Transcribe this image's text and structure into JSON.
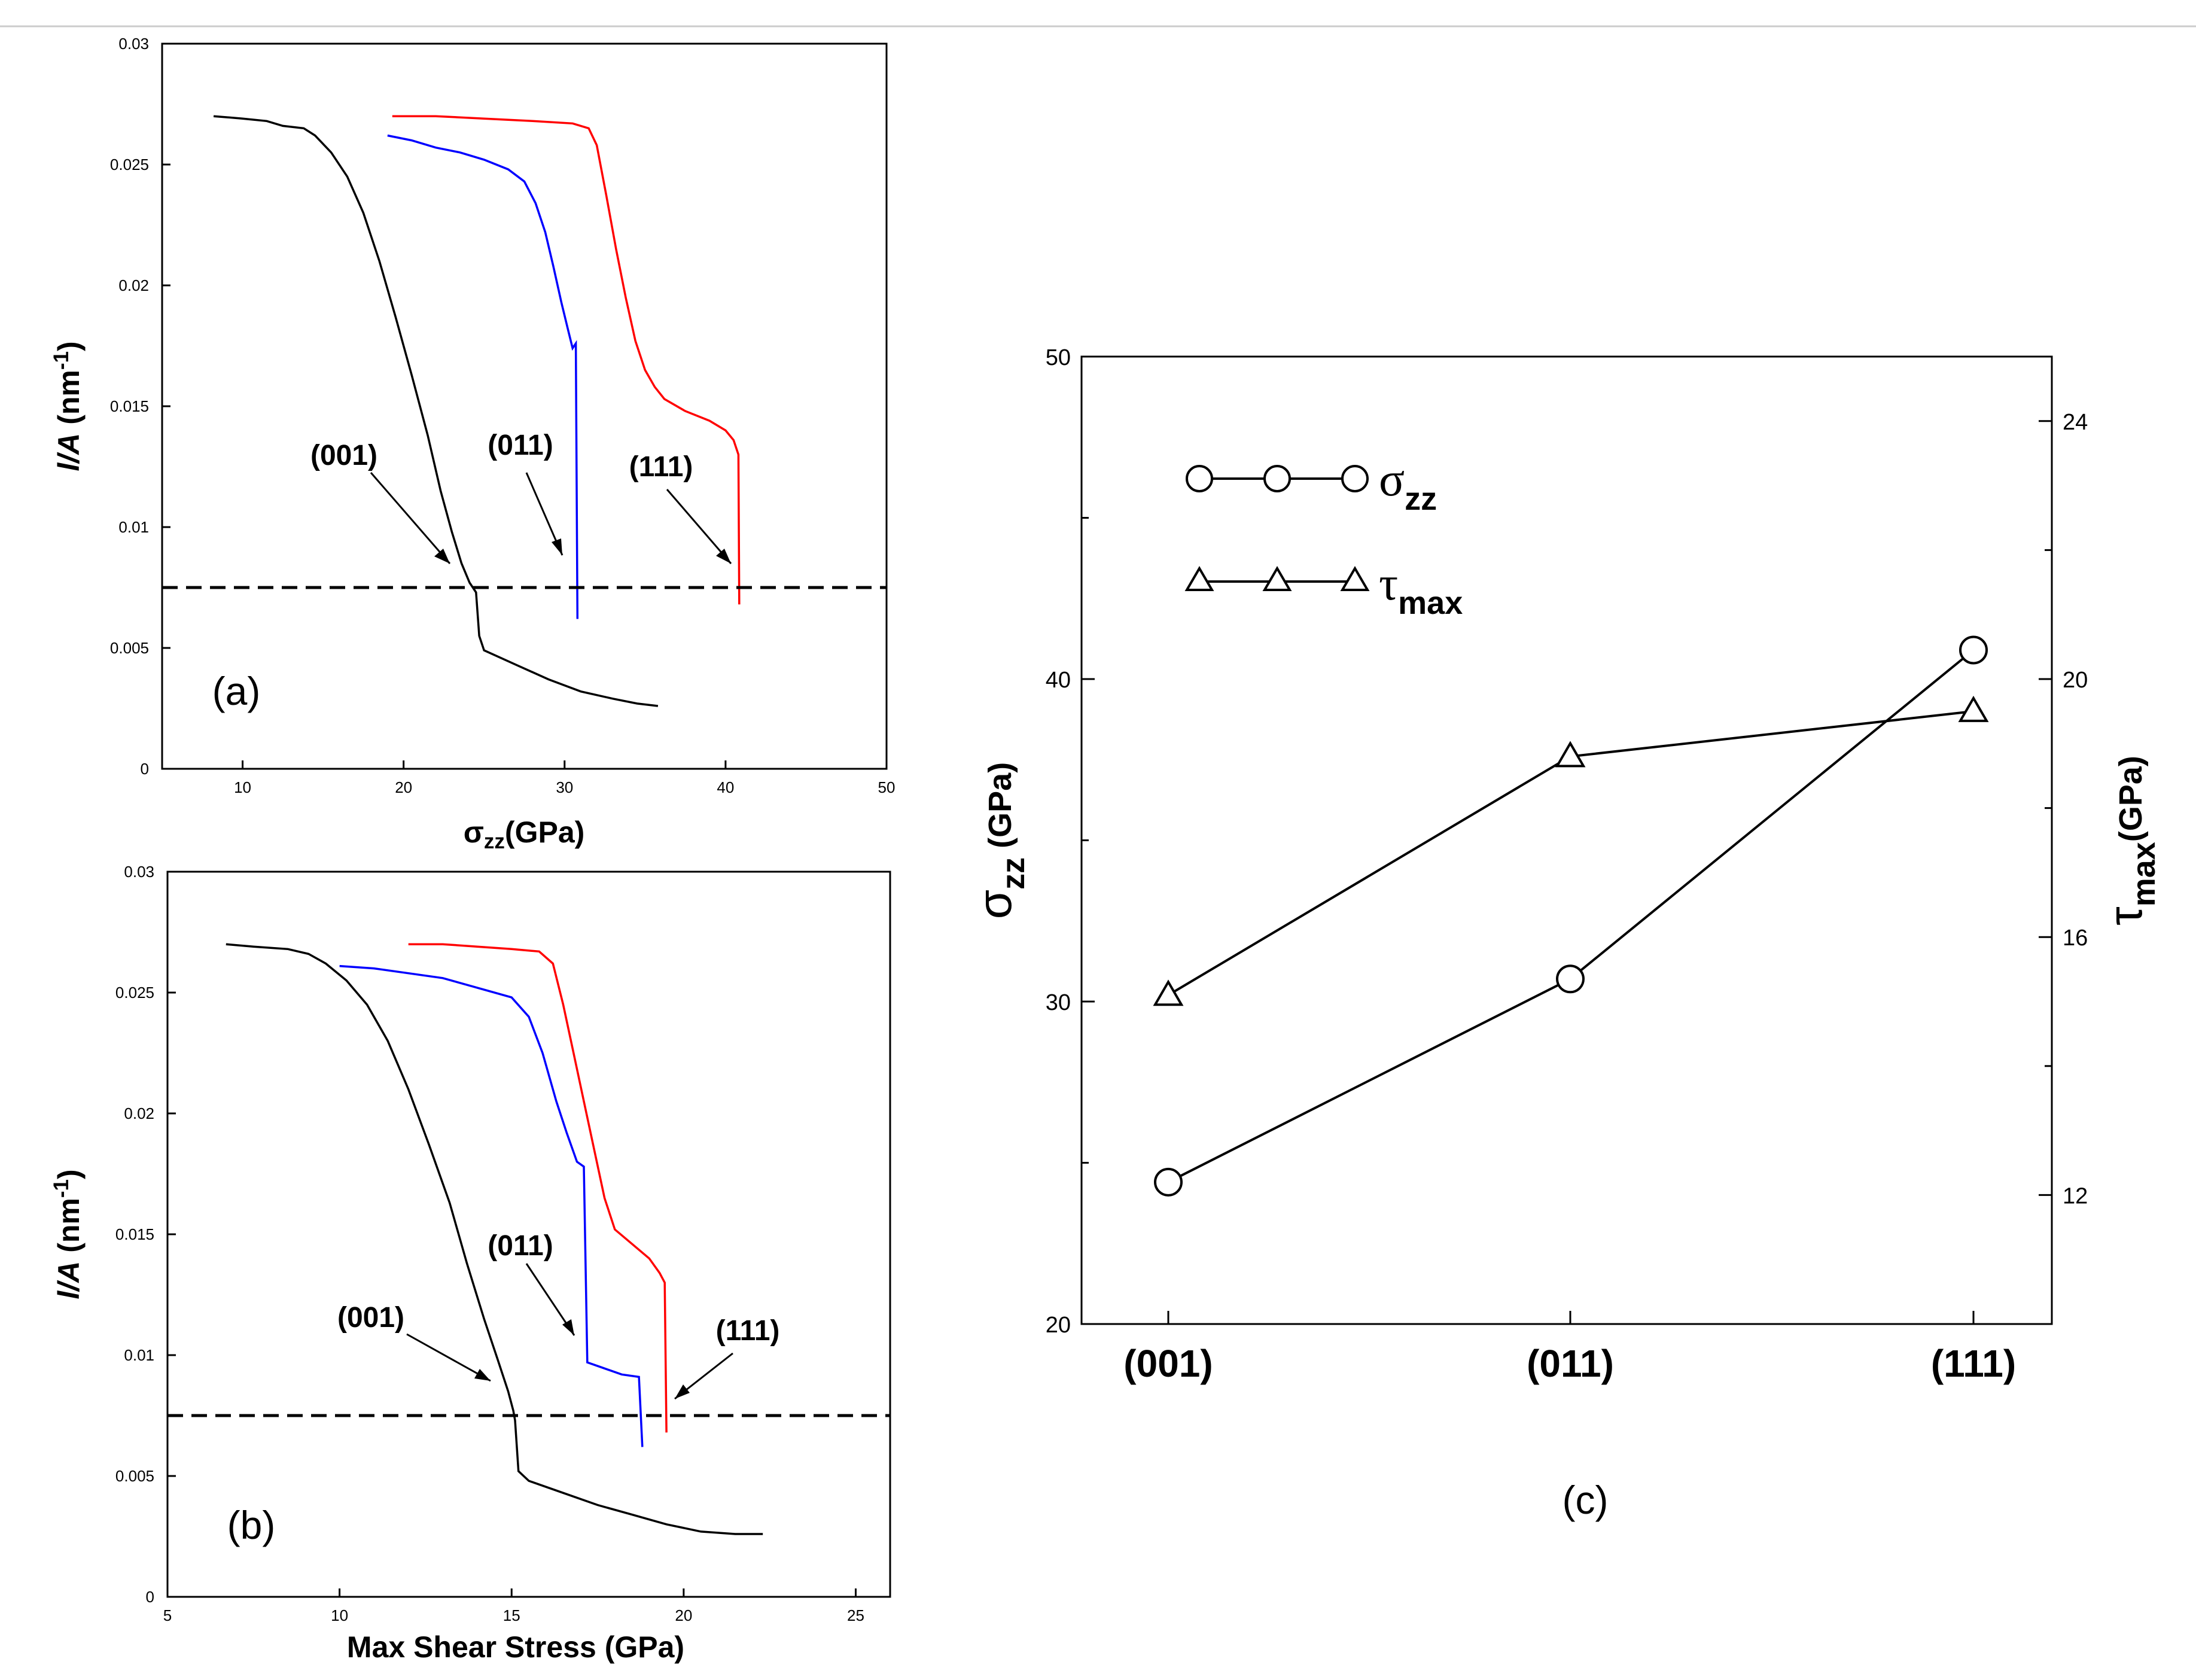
{
  "chart_data": [
    {
      "panel": "(a)",
      "type": "line",
      "xlim": [
        5,
        50
      ],
      "ylim": [
        0,
        0.03
      ],
      "xticks": [
        10,
        20,
        30,
        40,
        50
      ],
      "yticks": [
        "0",
        "0.005",
        "0.01",
        "0.015",
        "0.02",
        "0.025",
        "0.03"
      ],
      "xlabel_main": "σ",
      "xlabel_sub": "zz",
      "xlabel_rest": "(GPa)",
      "ylabel_var": "l/A",
      "ylabel_unit": " (nm",
      "ylabel_exp": "-1",
      "ylabel_close": ")",
      "threshold": 0.0075,
      "series": [
        {
          "name": "(001)",
          "color": "#000000",
          "points": [
            [
              8.2,
              0.027
            ],
            [
              10,
              0.0269
            ],
            [
              11.5,
              0.0268
            ],
            [
              12.5,
              0.0266
            ],
            [
              13.8,
              0.0265
            ],
            [
              14.5,
              0.0262
            ],
            [
              15.5,
              0.0255
            ],
            [
              16.5,
              0.0245
            ],
            [
              17.5,
              0.023
            ],
            [
              18.5,
              0.021
            ],
            [
              19.5,
              0.0187
            ],
            [
              20.5,
              0.0163
            ],
            [
              21.5,
              0.0138
            ],
            [
              22.3,
              0.0115
            ],
            [
              23,
              0.0098
            ],
            [
              23.6,
              0.0085
            ],
            [
              24.1,
              0.0077
            ],
            [
              24.5,
              0.0073
            ],
            [
              24.7,
              0.0055
            ],
            [
              25,
              0.0049
            ],
            [
              27,
              0.0043
            ],
            [
              29,
              0.0037
            ],
            [
              31,
              0.0032
            ],
            [
              33,
              0.0029
            ],
            [
              34.5,
              0.0027
            ],
            [
              35.8,
              0.0026
            ]
          ]
        },
        {
          "name": "(011)",
          "color": "#0000ff",
          "points": [
            [
              19,
              0.0262
            ],
            [
              20.5,
              0.026
            ],
            [
              22,
              0.0257
            ],
            [
              23.5,
              0.0255
            ],
            [
              25,
              0.0252
            ],
            [
              26.5,
              0.0248
            ],
            [
              27.5,
              0.0243
            ],
            [
              28.2,
              0.0234
            ],
            [
              28.8,
              0.0222
            ],
            [
              29.3,
              0.0208
            ],
            [
              29.8,
              0.0193
            ],
            [
              30.2,
              0.0182
            ],
            [
              30.5,
              0.0174
            ],
            [
              30.7,
              0.0176
            ],
            [
              30.8,
              0.0062
            ]
          ]
        },
        {
          "name": "(111)",
          "color": "#ff0000",
          "points": [
            [
              19.3,
              0.027
            ],
            [
              22,
              0.027
            ],
            [
              25,
              0.0269
            ],
            [
              28,
              0.0268
            ],
            [
              30.5,
              0.0267
            ],
            [
              31.5,
              0.0265
            ],
            [
              32,
              0.0258
            ],
            [
              32.6,
              0.0237
            ],
            [
              33.2,
              0.0215
            ],
            [
              33.8,
              0.0195
            ],
            [
              34.4,
              0.0177
            ],
            [
              35,
              0.0165
            ],
            [
              35.6,
              0.0158
            ],
            [
              36.2,
              0.0153
            ],
            [
              37.5,
              0.0148
            ],
            [
              39,
              0.0144
            ],
            [
              40,
              0.014
            ],
            [
              40.5,
              0.0136
            ],
            [
              40.8,
              0.013
            ],
            [
              40.85,
              0.0068
            ]
          ]
        }
      ],
      "annotations": [
        "(001)",
        "(011)",
        "(111)"
      ]
    },
    {
      "panel": "(b)",
      "type": "line",
      "xlim": [
        5,
        26
      ],
      "ylim": [
        0,
        0.03
      ],
      "xticks": [
        5,
        10,
        15,
        20,
        25
      ],
      "yticks": [
        "0",
        "0.005",
        "0.01",
        "0.015",
        "0.02",
        "0.025",
        "0.03"
      ],
      "xlabel": "Max Shear Stress (GPa)",
      "ylabel_var": "l/A",
      "ylabel_unit": " (nm",
      "ylabel_exp": "-1",
      "ylabel_close": ")",
      "threshold": 0.0075,
      "series": [
        {
          "name": "(001)",
          "color": "#000000",
          "points": [
            [
              6.7,
              0.027
            ],
            [
              7.5,
              0.0269
            ],
            [
              8.5,
              0.0268
            ],
            [
              9.1,
              0.0266
            ],
            [
              9.6,
              0.0262
            ],
            [
              10.2,
              0.0255
            ],
            [
              10.8,
              0.0245
            ],
            [
              11.4,
              0.023
            ],
            [
              12,
              0.021
            ],
            [
              12.6,
              0.0187
            ],
            [
              13.2,
              0.0163
            ],
            [
              13.7,
              0.0138
            ],
            [
              14.2,
              0.0115
            ],
            [
              14.6,
              0.0098
            ],
            [
              14.9,
              0.0085
            ],
            [
              15.05,
              0.0077
            ],
            [
              15.1,
              0.0073
            ],
            [
              15.2,
              0.0052
            ],
            [
              15.5,
              0.0048
            ],
            [
              16.5,
              0.0043
            ],
            [
              17.5,
              0.0038
            ],
            [
              18.5,
              0.0034
            ],
            [
              19.5,
              0.003
            ],
            [
              20.5,
              0.0027
            ],
            [
              21.5,
              0.0026
            ],
            [
              22.3,
              0.0026
            ]
          ]
        },
        {
          "name": "(011)",
          "color": "#0000ff",
          "points": [
            [
              10,
              0.0261
            ],
            [
              11,
              0.026
            ],
            [
              12,
              0.0258
            ],
            [
              13,
              0.0256
            ],
            [
              14,
              0.0252
            ],
            [
              15,
              0.0248
            ],
            [
              15.5,
              0.024
            ],
            [
              15.9,
              0.0225
            ],
            [
              16.3,
              0.0205
            ],
            [
              16.6,
              0.0192
            ],
            [
              16.9,
              0.018
            ],
            [
              17.1,
              0.0178
            ],
            [
              17.2,
              0.0097
            ],
            [
              17.6,
              0.0095
            ],
            [
              18.2,
              0.0092
            ],
            [
              18.7,
              0.0091
            ],
            [
              18.8,
              0.0062
            ]
          ]
        },
        {
          "name": "(111)",
          "color": "#ff0000",
          "points": [
            [
              12,
              0.027
            ],
            [
              13,
              0.027
            ],
            [
              14,
              0.0269
            ],
            [
              15,
              0.0268
            ],
            [
              15.8,
              0.0267
            ],
            [
              16.2,
              0.0262
            ],
            [
              16.5,
              0.0245
            ],
            [
              16.8,
              0.0225
            ],
            [
              17.1,
              0.0205
            ],
            [
              17.4,
              0.0185
            ],
            [
              17.7,
              0.0165
            ],
            [
              18,
              0.0152
            ],
            [
              18.5,
              0.0146
            ],
            [
              19,
              0.014
            ],
            [
              19.3,
              0.0134
            ],
            [
              19.45,
              0.013
            ],
            [
              19.5,
              0.0068
            ]
          ]
        }
      ],
      "annotations": [
        "(001)",
        "(011)",
        "(111)"
      ]
    },
    {
      "panel": "(c)",
      "type": "line",
      "categories": [
        "(001)",
        "(011)",
        "(111)"
      ],
      "left_axis": {
        "label_main": "σ",
        "label_sub": "zz",
        "label_rest": " (GPa)",
        "range": [
          20,
          50
        ],
        "ticks": [
          20,
          30,
          40,
          50
        ]
      },
      "right_axis": {
        "label_main": "τ",
        "label_sub": "max",
        "label_rest": "(GPa)",
        "range": [
          10,
          25
        ],
        "ticks": [
          12,
          16,
          20,
          24
        ]
      },
      "series": [
        {
          "name": "σzz",
          "legend_main": "σ",
          "legend_sub": "zz",
          "axis": "left",
          "marker": "circle",
          "values": [
            24.4,
            30.7,
            40.9
          ]
        },
        {
          "name": "τmax",
          "legend_main": "τ",
          "legend_sub": "max",
          "axis": "right",
          "marker": "triangle",
          "values": [
            15.1,
            18.8,
            19.5
          ]
        }
      ]
    }
  ]
}
